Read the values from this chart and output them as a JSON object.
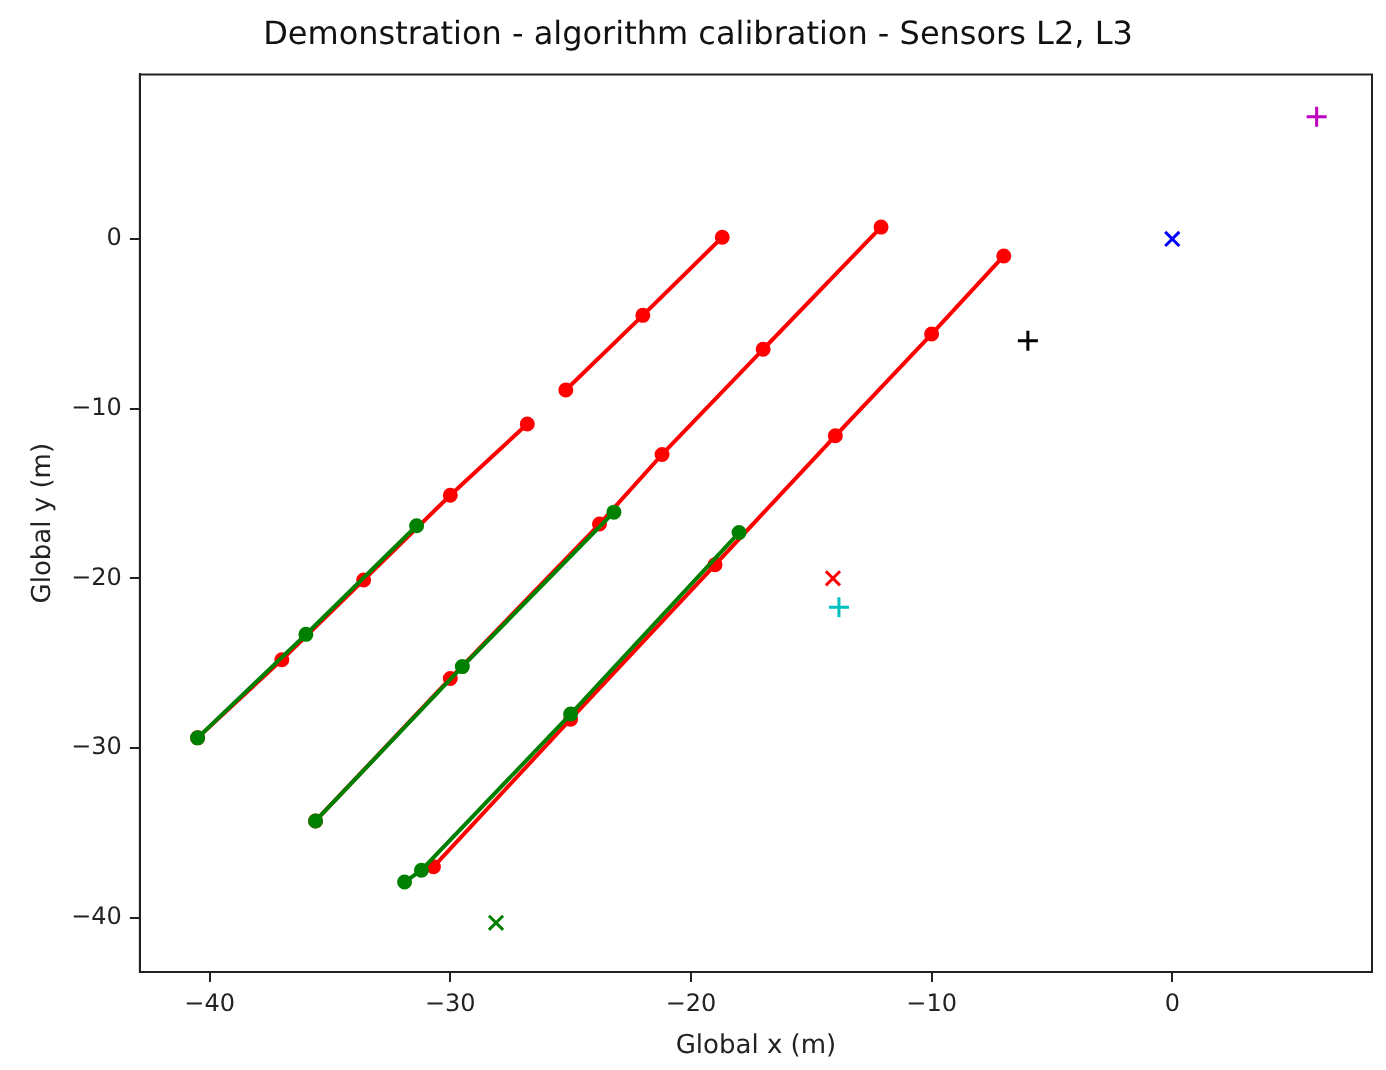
{
  "chart_data": {
    "type": "line",
    "title": "Demonstration - algorithm calibration - Sensors L2, L3",
    "xlabel": "Global x (m)",
    "ylabel": "Global y (m)",
    "xlim": [
      -42.9,
      8.3
    ],
    "ylim": [
      -43.2,
      9.7
    ],
    "xticks": [
      -40,
      -30,
      -20,
      -10,
      0
    ],
    "yticks": [
      -40,
      -30,
      -20,
      -10,
      0
    ],
    "grid": false,
    "legend": false,
    "series": [
      {
        "color": "#ff0000",
        "marker": "circle",
        "x": [
          -40.5,
          -37.0,
          -33.6,
          -30.0,
          -26.8,
          null,
          -25.2,
          -22.0,
          -18.7,
          null,
          -35.6,
          -30.0,
          -23.8,
          -21.2,
          -17.0,
          -12.1,
          null,
          -30.7,
          -25.0,
          -19.0,
          -14.0,
          -10.0,
          -7.0
        ],
        "values": [
          -29.4,
          -24.8,
          -20.1,
          -15.1,
          -10.9,
          null,
          -8.9,
          -4.5,
          0.1,
          null,
          -34.3,
          -25.9,
          -16.8,
          -12.7,
          -6.5,
          0.7,
          null,
          -37.0,
          -28.3,
          -19.2,
          -11.6,
          -5.6,
          -1.0
        ]
      },
      {
        "color": "#008000",
        "marker": "circle",
        "x": [
          -40.5,
          -36.0,
          -31.4,
          null,
          -35.6,
          -29.5,
          -23.2,
          null,
          -31.9,
          -31.2,
          -25.0,
          -18.0
        ],
        "values": [
          -29.4,
          -23.3,
          -16.9,
          null,
          -34.3,
          -25.2,
          -16.1,
          null,
          -37.9,
          -37.2,
          -28.0,
          -17.3
        ]
      },
      {
        "type": "scatter",
        "color": "#bf00bf",
        "marker": "plus",
        "x": [
          6.0
        ],
        "values": [
          7.2
        ]
      },
      {
        "type": "scatter",
        "color": "#0000ff",
        "marker": "cross",
        "x": [
          0
        ],
        "values": [
          0
        ]
      },
      {
        "type": "scatter",
        "color": "#000000",
        "marker": "plus",
        "x": [
          -6.0
        ],
        "values": [
          -6.0
        ]
      },
      {
        "type": "scatter",
        "color": "#ff0000",
        "marker": "cross",
        "x": [
          -14.1
        ],
        "values": [
          -20.0
        ]
      },
      {
        "type": "scatter",
        "color": "#00bfbf",
        "marker": "plus",
        "x": [
          -13.85
        ],
        "values": [
          -21.7
        ]
      },
      {
        "type": "scatter",
        "color": "#008000",
        "marker": "cross",
        "x": [
          -28.1
        ],
        "values": [
          -40.3
        ]
      }
    ]
  }
}
